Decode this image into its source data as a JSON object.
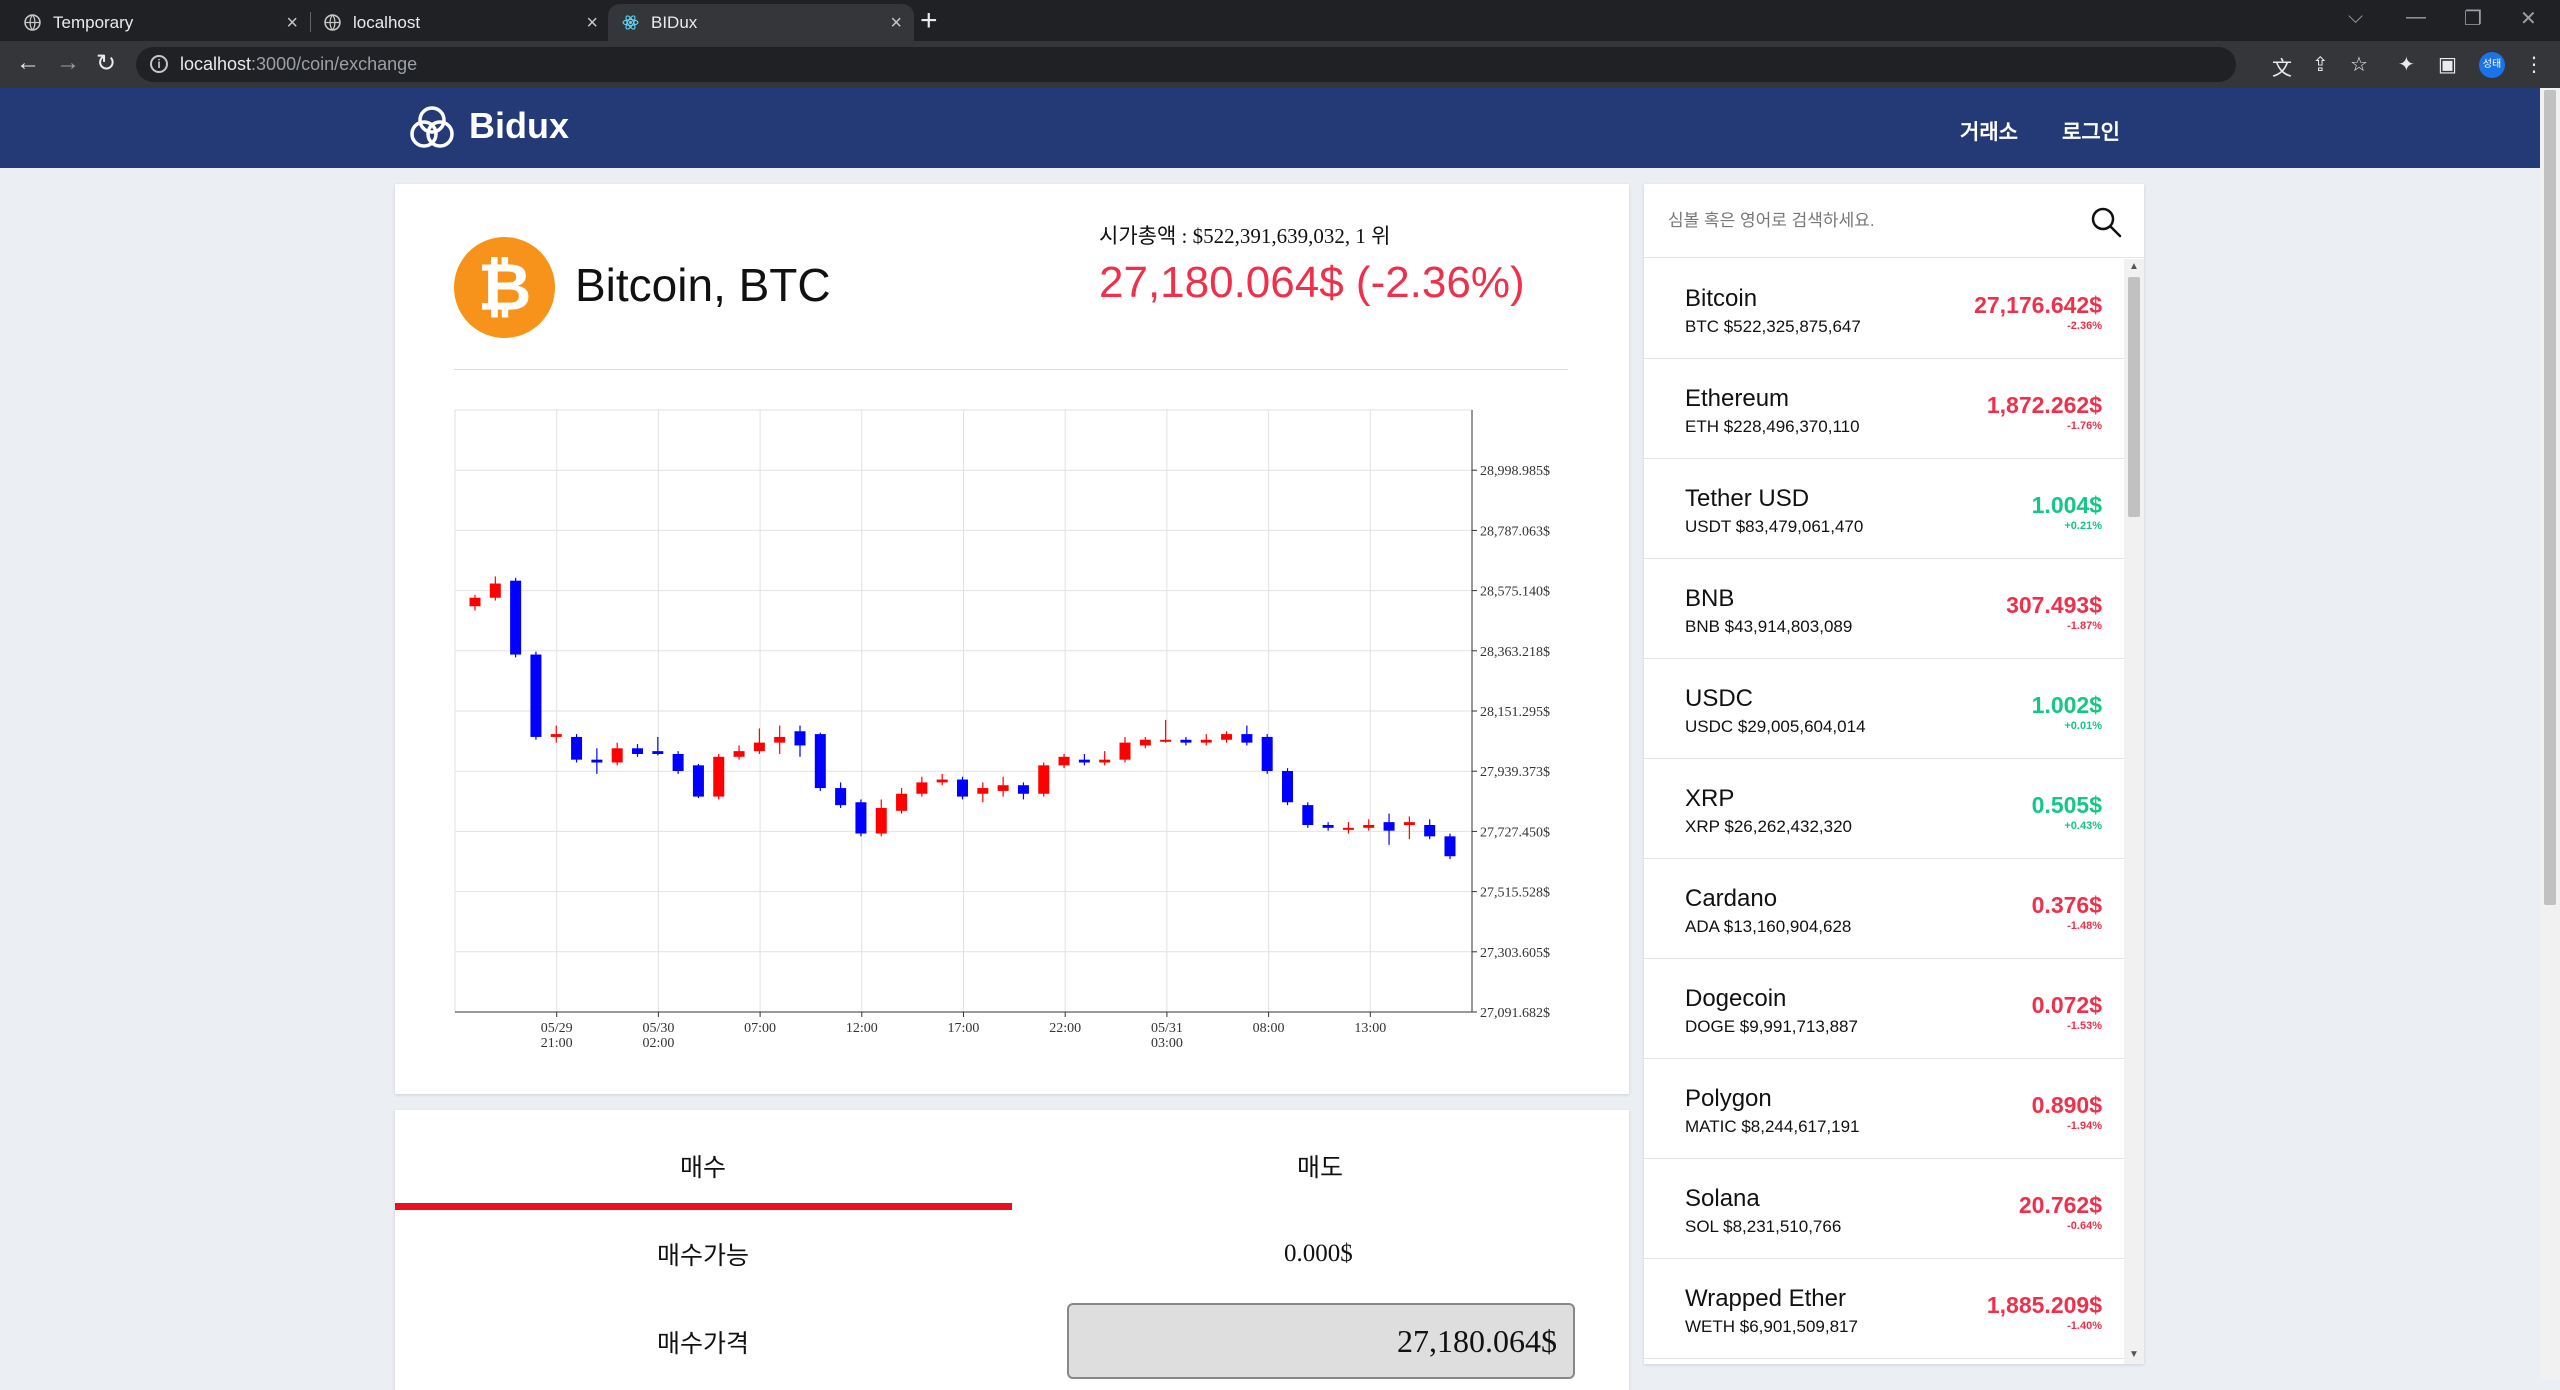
{
  "browser": {
    "tabs": [
      {
        "title": "Temporary"
      },
      {
        "title": "localhost"
      },
      {
        "title": "BIDux"
      }
    ],
    "url_host": "localhost",
    "url_path": ":3000/coin/exchange",
    "profile_label": "성태"
  },
  "header": {
    "logo_text": "Bidux",
    "nav": [
      "거래소",
      "로그인"
    ]
  },
  "coin": {
    "name": "Bitcoin, BTC",
    "logo_glyph": "₿",
    "market_cap_text": "시가총액 : $522,391,639,032, 1 위",
    "price_text": "27,180.064$ (-2.36%)"
  },
  "chart_data": {
    "type": "candlestick",
    "y_ticks": [
      "28,998.985$",
      "28,787.063$",
      "28,575.140$",
      "28,363.218$",
      "28,151.295$",
      "27,939.373$",
      "27,727.450$",
      "27,515.528$",
      "27,303.605$",
      "27,091.682$"
    ],
    "x_ticks": [
      {
        "l1": "05/29",
        "l2": "21:00"
      },
      {
        "l1": "05/30",
        "l2": "02:00"
      },
      {
        "l1": "07:00",
        "l2": ""
      },
      {
        "l1": "12:00",
        "l2": ""
      },
      {
        "l1": "17:00",
        "l2": ""
      },
      {
        "l1": "22:00",
        "l2": ""
      },
      {
        "l1": "05/31",
        "l2": "03:00"
      },
      {
        "l1": "08:00",
        "l2": ""
      },
      {
        "l1": "13:00",
        "l2": ""
      }
    ],
    "ylim": [
      27091.682,
      29210.9
    ],
    "up_color": "#ff0000",
    "down_color": "#0000ff",
    "candles": [
      [
        28520,
        28550,
        28560,
        28505
      ],
      [
        28550,
        28600,
        28625,
        28540
      ],
      [
        28610,
        28350,
        28620,
        28340
      ],
      [
        28350,
        28060,
        28360,
        28050
      ],
      [
        28060,
        28070,
        28100,
        28040
      ],
      [
        28060,
        27980,
        28070,
        27970
      ],
      [
        27980,
        27970,
        28020,
        27930
      ],
      [
        27970,
        28020,
        28040,
        27960
      ],
      [
        28020,
        28000,
        28035,
        27990
      ],
      [
        28010,
        28000,
        28060,
        27995
      ],
      [
        28000,
        27940,
        28010,
        27930
      ],
      [
        27960,
        27850,
        27965,
        27845
      ],
      [
        27850,
        27990,
        28000,
        27840
      ],
      [
        27990,
        28010,
        28030,
        27980
      ],
      [
        28010,
        28040,
        28090,
        28000
      ],
      [
        28040,
        28060,
        28100,
        28000
      ],
      [
        28080,
        28030,
        28100,
        27990
      ],
      [
        28070,
        27880,
        28075,
        27870
      ],
      [
        27880,
        27820,
        27900,
        27810
      ],
      [
        27830,
        27720,
        27840,
        27710
      ],
      [
        27720,
        27810,
        27840,
        27710
      ],
      [
        27800,
        27860,
        27880,
        27790
      ],
      [
        27860,
        27900,
        27920,
        27850
      ],
      [
        27900,
        27910,
        27930,
        27890
      ],
      [
        27910,
        27850,
        27920,
        27840
      ],
      [
        27860,
        27880,
        27900,
        27830
      ],
      [
        27870,
        27890,
        27920,
        27850
      ],
      [
        27890,
        27860,
        27900,
        27840
      ],
      [
        27860,
        27960,
        27970,
        27850
      ],
      [
        27960,
        27990,
        28000,
        27950
      ],
      [
        27980,
        27970,
        28000,
        27960
      ],
      [
        27970,
        27980,
        28010,
        27960
      ],
      [
        27980,
        28040,
        28060,
        27970
      ],
      [
        28030,
        28050,
        28060,
        28020
      ],
      [
        28050,
        28050,
        28120,
        28040
      ],
      [
        28050,
        28040,
        28060,
        28030
      ],
      [
        28040,
        28050,
        28070,
        28030
      ],
      [
        28050,
        28070,
        28080,
        28040
      ],
      [
        28070,
        28040,
        28100,
        28030
      ],
      [
        28060,
        27940,
        28070,
        27930
      ],
      [
        27940,
        27830,
        27950,
        27820
      ],
      [
        27820,
        27750,
        27830,
        27740
      ],
      [
        27750,
        27740,
        27760,
        27730
      ],
      [
        27740,
        27740,
        27760,
        27720
      ],
      [
        27740,
        27750,
        27770,
        27730
      ],
      [
        27760,
        27730,
        27790,
        27680
      ],
      [
        27750,
        27760,
        27780,
        27700
      ],
      [
        27750,
        27710,
        27770,
        27700
      ],
      [
        27710,
        27640,
        27720,
        27630
      ]
    ]
  },
  "trade": {
    "tabs": [
      "매수",
      "매도"
    ],
    "available_label": "매수가능",
    "available_value": "0.000$",
    "price_label": "매수가격",
    "price_value": "27,180.064$"
  },
  "search": {
    "placeholder": "심볼 혹은 영어로 검색하세요."
  },
  "coins": [
    {
      "name": "Bitcoin",
      "sub": "BTC $522,325,875,647",
      "price": "27,176.642$",
      "change": "-2.36%",
      "dir": "down"
    },
    {
      "name": "Ethereum",
      "sub": "ETH $228,496,370,110",
      "price": "1,872.262$",
      "change": "-1.76%",
      "dir": "down"
    },
    {
      "name": "Tether USD",
      "sub": "USDT $83,479,061,470",
      "price": "1.004$",
      "change": "+0.21%",
      "dir": "up"
    },
    {
      "name": "BNB",
      "sub": "BNB $43,914,803,089",
      "price": "307.493$",
      "change": "-1.87%",
      "dir": "down"
    },
    {
      "name": "USDC",
      "sub": "USDC $29,005,604,014",
      "price": "1.002$",
      "change": "+0.01%",
      "dir": "up"
    },
    {
      "name": "XRP",
      "sub": "XRP $26,262,432,320",
      "price": "0.505$",
      "change": "+0.43%",
      "dir": "up"
    },
    {
      "name": "Cardano",
      "sub": "ADA $13,160,904,628",
      "price": "0.376$",
      "change": "-1.48%",
      "dir": "down"
    },
    {
      "name": "Dogecoin",
      "sub": "DOGE $9,991,713,887",
      "price": "0.072$",
      "change": "-1.53%",
      "dir": "down"
    },
    {
      "name": "Polygon",
      "sub": "MATIC $8,244,617,191",
      "price": "0.890$",
      "change": "-1.94%",
      "dir": "down"
    },
    {
      "name": "Solana",
      "sub": "SOL $8,231,510,766",
      "price": "20.762$",
      "change": "-0.64%",
      "dir": "down"
    },
    {
      "name": "Wrapped Ether",
      "sub": "WETH $6,901,509,817",
      "price": "1,885.209$",
      "change": "-1.40%",
      "dir": "down"
    }
  ]
}
